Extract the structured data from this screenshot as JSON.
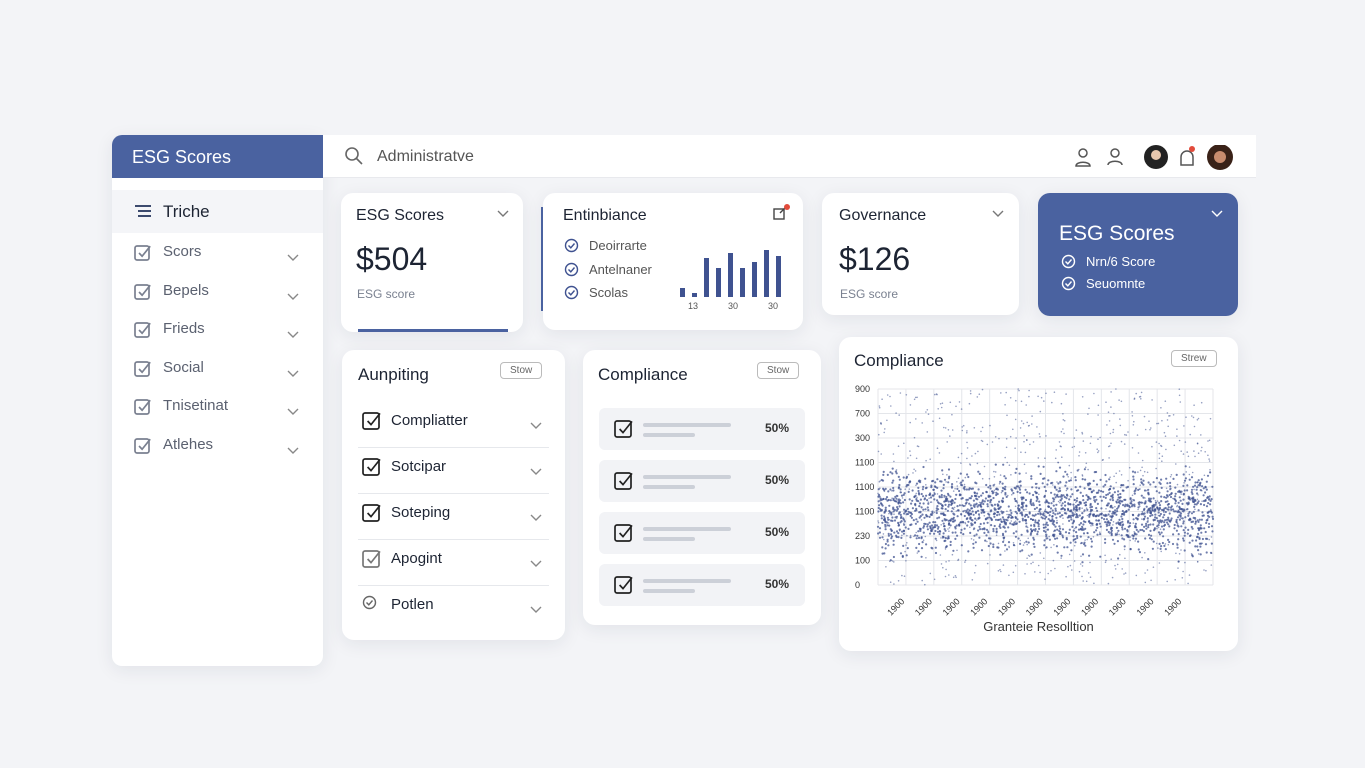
{
  "sidebar": {
    "brand": "ESG Scores",
    "active": "Triche",
    "items": [
      "Scors",
      "Bepels",
      "Frieds",
      "Social",
      "Tnisetinat",
      "Atlehes"
    ]
  },
  "topbar": {
    "search": "Administratve"
  },
  "cards": [
    {
      "title": "ESG Scores",
      "value": "$504",
      "caption": "ESG score"
    },
    {
      "title": "Governance",
      "value": "$126",
      "caption": "ESG score"
    }
  ],
  "entinbiance": {
    "title": "Entinbiance",
    "items": [
      "Deoirrarte",
      "Antelnaner",
      "Scolas"
    ],
    "axis_labels": [
      "13",
      "30",
      "30"
    ]
  },
  "highlight": {
    "title": "ESG Scores",
    "items": [
      "Nrn/6 Score",
      "Seuomnte"
    ]
  },
  "auditing": {
    "title": "Aunpiting",
    "button": "Stow",
    "items": [
      "Compliatter",
      "Sotcipar",
      "Soteping",
      "Apogint",
      "Potlen"
    ]
  },
  "compliance_list": {
    "title": "Compliance",
    "button": "Stow",
    "rows": [
      "50%",
      "50%",
      "50%",
      "50%"
    ]
  },
  "scatter": {
    "title": "Compliance",
    "button": "Strew",
    "y_labels": [
      "900",
      "700",
      "300",
      "1100",
      "1100",
      "1100",
      "230",
      "100",
      "0"
    ],
    "x_labels": [
      "1900",
      "1900",
      "1900",
      "1900",
      "1900",
      "1900",
      "1900",
      "1900",
      "1900",
      "1900",
      "1900"
    ],
    "x_title": "Granteie Resolltion"
  }
}
